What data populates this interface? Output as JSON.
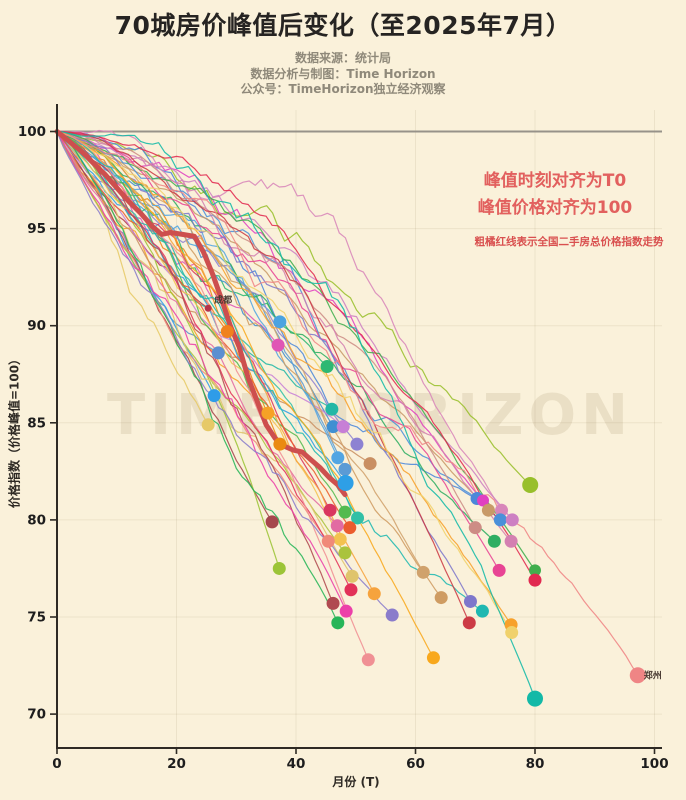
{
  "header": {
    "title": "70城房价峰值后变化（至2025年7月）",
    "source_line": "数据来源：统计局",
    "credit_line": "数据分析与制图：Time Horizon",
    "channel_line": "公众号：TimeHorizon独立经济观察"
  },
  "annotations": {
    "align_time": "峰值时刻对齐为T0",
    "align_price": "峰值价格对齐为100",
    "thick_line_note": "粗橘红线表示全国二手房总价格指数走势"
  },
  "watermark": "TIME HORIZON",
  "colors": {
    "background": "#faf1da",
    "axis": "#2e2a24",
    "tick_label": "#1d1d1d",
    "grid": "rgba(120,100,60,0.10)",
    "baseline_gray": "#979289",
    "national_red": "#cd4f4e",
    "annotation_red": "#e2605e",
    "note_red": "#d9504f"
  },
  "chart_data": {
    "type": "line",
    "title": "70城房价峰值后变化（至2025年7月）",
    "xlabel": "月份 (T)",
    "ylabel": "价格指数（价格峰值=100）",
    "xlim": [
      0,
      100
    ],
    "ylim": [
      68.2,
      101.1
    ],
    "xticks": [
      0,
      20,
      40,
      60,
      80,
      100
    ],
    "yticks": [
      70,
      75,
      80,
      85,
      90,
      95,
      100
    ],
    "grid": true,
    "peak_baseline": {
      "value": 100,
      "color": "#979289"
    },
    "national_line": {
      "name": "全国二手房总价格指数",
      "color": "#cd4f4e",
      "width": 5,
      "points": [
        [
          0,
          100
        ],
        [
          2,
          99.5
        ],
        [
          4,
          99.0
        ],
        [
          6,
          98.4
        ],
        [
          8,
          97.8
        ],
        [
          10,
          97.1
        ],
        [
          12,
          96.4
        ],
        [
          14,
          95.8
        ],
        [
          16,
          95.1
        ],
        [
          17.5,
          94.7
        ],
        [
          19,
          94.8
        ],
        [
          21,
          94.7
        ],
        [
          23,
          94.6
        ],
        [
          24.5,
          93.8
        ],
        [
          26,
          92.7
        ],
        [
          27.5,
          91.4
        ],
        [
          29,
          90.0
        ],
        [
          30.5,
          88.9
        ],
        [
          32,
          87.3
        ],
        [
          33.5,
          86.1
        ],
        [
          35,
          84.9
        ],
        [
          36.5,
          84.2
        ],
        [
          38,
          83.8
        ],
        [
          39.5,
          83.6
        ],
        [
          41,
          83.5
        ],
        [
          42.5,
          83.1
        ],
        [
          44,
          82.7
        ],
        [
          45.5,
          82.2
        ],
        [
          47,
          81.8
        ],
        [
          48.2,
          81.3
        ]
      ]
    },
    "cities": [
      {
        "end": [
          25.3,
          90.9
        ],
        "color": "#b5344a",
        "r": 3.5,
        "label": "成都"
      },
      {
        "end": [
          28.5,
          89.7
        ],
        "color": "#f0821e"
      },
      {
        "end": [
          27.0,
          88.6
        ],
        "color": "#5b8fd0"
      },
      {
        "end": [
          26.3,
          86.4
        ],
        "color": "#2f9ce8"
      },
      {
        "end": [
          25.3,
          84.9
        ],
        "color": "#e6c967"
      },
      {
        "end": [
          37.3,
          90.2
        ],
        "color": "#4aa3e0"
      },
      {
        "end": [
          37.0,
          89.0
        ],
        "color": "#e055b5"
      },
      {
        "end": [
          35.3,
          85.5
        ],
        "color": "#f6a226"
      },
      {
        "end": [
          37.3,
          83.9
        ],
        "color": "#ea8a12"
      },
      {
        "end": [
          36.0,
          79.9
        ],
        "color": "#a6474d"
      },
      {
        "end": [
          37.2,
          77.5
        ],
        "color": "#9cc437"
      },
      {
        "end": [
          45.2,
          87.9
        ],
        "color": "#2db873"
      },
      {
        "end": [
          46.0,
          85.7
        ],
        "color": "#23b7a6"
      },
      {
        "end": [
          46.2,
          84.8
        ],
        "color": "#3f8fd2"
      },
      {
        "end": [
          47.9,
          84.8
        ],
        "color": "#c77fd6"
      },
      {
        "end": [
          50.2,
          83.9
        ],
        "color": "#8d82d2"
      },
      {
        "end": [
          52.4,
          82.9
        ],
        "color": "#c98f62"
      },
      {
        "end": [
          47.0,
          83.2
        ],
        "color": "#52a5e3"
      },
      {
        "end": [
          48.2,
          82.6
        ],
        "color": "#5b9bd5"
      },
      {
        "end": [
          48.3,
          81.9
        ],
        "color": "#2e9fe6",
        "r": 8
      },
      {
        "end": [
          45.7,
          80.5
        ],
        "color": "#d9375f"
      },
      {
        "end": [
          48.2,
          80.4
        ],
        "color": "#53ba4f"
      },
      {
        "end": [
          50.3,
          80.1
        ],
        "color": "#32c0a6"
      },
      {
        "end": [
          49.0,
          79.6
        ],
        "color": "#eb5c2e"
      },
      {
        "end": [
          46.9,
          79.7
        ],
        "color": "#e26ba2"
      },
      {
        "end": [
          47.4,
          79.0
        ],
        "color": "#f3c24f"
      },
      {
        "end": [
          45.4,
          78.9
        ],
        "color": "#f08a79"
      },
      {
        "end": [
          48.2,
          78.3
        ],
        "color": "#aac33d"
      },
      {
        "end": [
          49.4,
          77.1
        ],
        "color": "#dfc46c"
      },
      {
        "end": [
          49.2,
          76.4
        ],
        "color": "#e23259"
      },
      {
        "end": [
          46.2,
          75.7
        ],
        "color": "#b04a50"
      },
      {
        "end": [
          48.4,
          75.3
        ],
        "color": "#ec40a9"
      },
      {
        "end": [
          47.0,
          74.7
        ],
        "color": "#27b558"
      },
      {
        "end": [
          52.1,
          72.8
        ],
        "color": "#f09094"
      },
      {
        "end": [
          53.1,
          76.2
        ],
        "color": "#f6a33d"
      },
      {
        "end": [
          56.1,
          75.1
        ],
        "color": "#8a7ccb"
      },
      {
        "end": [
          61.3,
          77.3
        ],
        "color": "#d0a26c"
      },
      {
        "end": [
          64.3,
          76.0
        ],
        "color": "#cf9c62"
      },
      {
        "end": [
          63.0,
          72.9
        ],
        "color": "#f8a81c"
      },
      {
        "end": [
          79.2,
          81.8
        ],
        "color": "#98bf2b",
        "r": 8
      },
      {
        "end": [
          70.3,
          81.1
        ],
        "color": "#4c87d9"
      },
      {
        "end": [
          71.3,
          81.0
        ],
        "color": "#e040c1",
        "r": 6
      },
      {
        "end": [
          72.2,
          80.5
        ],
        "color": "#c89a68"
      },
      {
        "end": [
          74.4,
          80.5
        ],
        "color": "#d886ba"
      },
      {
        "end": [
          74.2,
          80.0
        ],
        "color": "#4a90d9"
      },
      {
        "end": [
          76.2,
          80.0
        ],
        "color": "#cd80c3"
      },
      {
        "end": [
          70.0,
          79.6
        ],
        "color": "#cd8c85"
      },
      {
        "end": [
          73.2,
          78.9
        ],
        "color": "#2fae62"
      },
      {
        "end": [
          76.0,
          78.9
        ],
        "color": "#d480b1"
      },
      {
        "end": [
          74.0,
          77.4
        ],
        "color": "#e84494"
      },
      {
        "end": [
          80.0,
          77.4
        ],
        "color": "#40ae4d",
        "r": 6
      },
      {
        "end": [
          80.0,
          76.9
        ],
        "color": "#e12950"
      },
      {
        "end": [
          69.2,
          75.8
        ],
        "color": "#7e77cb"
      },
      {
        "end": [
          71.2,
          75.3
        ],
        "color": "#1fb8b1"
      },
      {
        "end": [
          69.0,
          74.7
        ],
        "color": "#cc3b45"
      },
      {
        "end": [
          76.0,
          74.6
        ],
        "color": "#f7a12b"
      },
      {
        "end": [
          76.1,
          74.2
        ],
        "color": "#f0d16b"
      },
      {
        "end": [
          80.0,
          70.8
        ],
        "color": "#13b9a7",
        "r": 8
      },
      {
        "end": [
          97.2,
          72.0
        ],
        "color": "#ef8585",
        "r": 8,
        "label": "郑州"
      }
    ]
  }
}
